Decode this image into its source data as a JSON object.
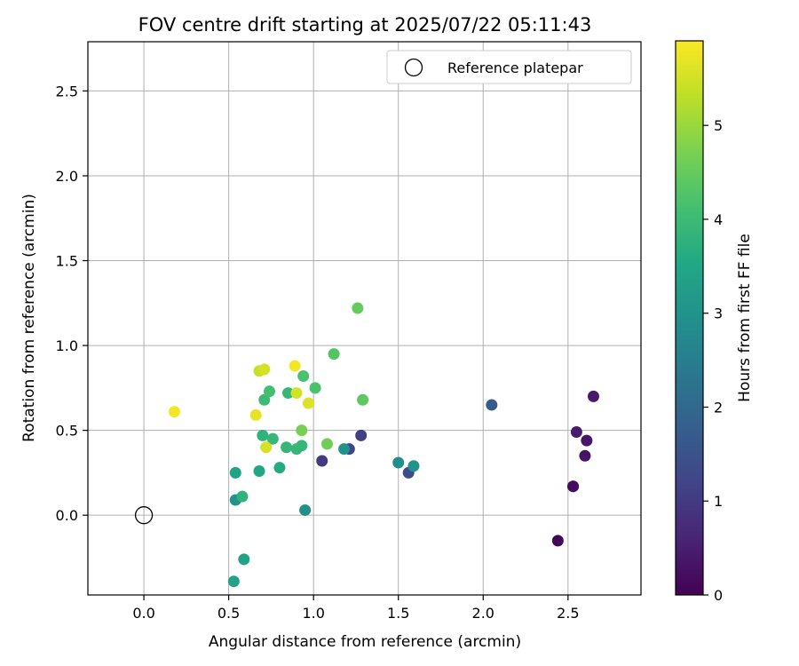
{
  "chart_data": {
    "type": "scatter",
    "title": "FOV centre drift starting at 2025/07/22 05:11:43",
    "xlabel": "Angular distance from reference (arcmin)",
    "ylabel": "Rotation from reference (arcmin)",
    "xlim": [
      -0.33,
      2.93
    ],
    "ylim": [
      -0.47,
      2.79
    ],
    "xticks": [
      0.0,
      0.5,
      1.0,
      1.5,
      2.0,
      2.5
    ],
    "xtick_labels": [
      "0.0",
      "0.5",
      "1.0",
      "1.5",
      "2.0",
      "2.5"
    ],
    "yticks": [
      0.0,
      0.5,
      1.0,
      1.5,
      2.0,
      2.5
    ],
    "ytick_labels": [
      "0.0",
      "0.5",
      "1.0",
      "1.5",
      "2.0",
      "2.5"
    ],
    "grid": true,
    "legend": {
      "placement": "top-right",
      "entries": [
        {
          "label": "Reference platepar",
          "marker": "open-circle",
          "color": "#000000"
        }
      ]
    },
    "reference_point": {
      "x": 0.0,
      "y": 0.0
    },
    "colorbar": {
      "label": "Hours from first FF file",
      "colormap": "viridis",
      "range": [
        0,
        5.9
      ],
      "ticks": [
        0,
        1,
        2,
        3,
        4,
        5
      ],
      "tick_labels": [
        "0",
        "1",
        "2",
        "3",
        "4",
        "5"
      ]
    },
    "points": [
      {
        "x": 2.44,
        "y": -0.15,
        "hours": 0.05
      },
      {
        "x": 2.53,
        "y": 0.17,
        "hours": 0.15
      },
      {
        "x": 2.53,
        "y": 0.17,
        "hours": 0.2
      },
      {
        "x": 2.6,
        "y": 0.35,
        "hours": 0.3
      },
      {
        "x": 2.61,
        "y": 0.44,
        "hours": 0.35
      },
      {
        "x": 2.55,
        "y": 0.49,
        "hours": 0.45
      },
      {
        "x": 2.65,
        "y": 0.7,
        "hours": 0.4
      },
      {
        "x": 1.05,
        "y": 0.32,
        "hours": 1.0
      },
      {
        "x": 1.28,
        "y": 0.47,
        "hours": 1.1
      },
      {
        "x": 1.21,
        "y": 0.39,
        "hours": 1.2
      },
      {
        "x": 1.56,
        "y": 0.25,
        "hours": 1.35
      },
      {
        "x": 2.05,
        "y": 0.65,
        "hours": 1.7
      },
      {
        "x": 1.5,
        "y": 0.31,
        "hours": 2.9
      },
      {
        "x": 1.59,
        "y": 0.29,
        "hours": 3.0
      },
      {
        "x": 1.18,
        "y": 0.39,
        "hours": 3.0
      },
      {
        "x": 0.95,
        "y": 0.03,
        "hours": 2.9
      },
      {
        "x": 0.54,
        "y": 0.09,
        "hours": 3.0
      },
      {
        "x": 0.53,
        "y": -0.39,
        "hours": 3.4
      },
      {
        "x": 0.59,
        "y": -0.26,
        "hours": 3.4
      },
      {
        "x": 0.54,
        "y": 0.25,
        "hours": 3.4
      },
      {
        "x": 0.68,
        "y": 0.26,
        "hours": 3.5
      },
      {
        "x": 0.8,
        "y": 0.28,
        "hours": 3.6
      },
      {
        "x": 0.58,
        "y": 0.11,
        "hours": 3.8
      },
      {
        "x": 0.7,
        "y": 0.47,
        "hours": 3.8
      },
      {
        "x": 0.76,
        "y": 0.45,
        "hours": 3.9
      },
      {
        "x": 0.84,
        "y": 0.4,
        "hours": 3.9
      },
      {
        "x": 0.9,
        "y": 0.39,
        "hours": 3.9
      },
      {
        "x": 0.93,
        "y": 0.41,
        "hours": 3.9
      },
      {
        "x": 0.85,
        "y": 0.72,
        "hours": 3.9
      },
      {
        "x": 0.71,
        "y": 0.68,
        "hours": 4.0
      },
      {
        "x": 0.74,
        "y": 0.73,
        "hours": 4.1
      },
      {
        "x": 1.01,
        "y": 0.75,
        "hours": 4.2
      },
      {
        "x": 0.94,
        "y": 0.82,
        "hours": 4.2
      },
      {
        "x": 1.12,
        "y": 0.95,
        "hours": 4.3
      },
      {
        "x": 1.26,
        "y": 1.22,
        "hours": 4.5
      },
      {
        "x": 1.29,
        "y": 0.68,
        "hours": 4.4
      },
      {
        "x": 1.08,
        "y": 0.42,
        "hours": 4.6
      },
      {
        "x": 0.93,
        "y": 0.5,
        "hours": 4.7
      },
      {
        "x": 0.72,
        "y": 0.4,
        "hours": 5.5
      },
      {
        "x": 0.66,
        "y": 0.59,
        "hours": 5.7
      },
      {
        "x": 0.97,
        "y": 0.66,
        "hours": 5.6
      },
      {
        "x": 0.9,
        "y": 0.72,
        "hours": 5.5
      },
      {
        "x": 0.68,
        "y": 0.85,
        "hours": 5.4
      },
      {
        "x": 0.71,
        "y": 0.86,
        "hours": 5.5
      },
      {
        "x": 0.89,
        "y": 0.88,
        "hours": 5.8
      },
      {
        "x": 0.18,
        "y": 0.61,
        "hours": 5.8
      }
    ]
  }
}
